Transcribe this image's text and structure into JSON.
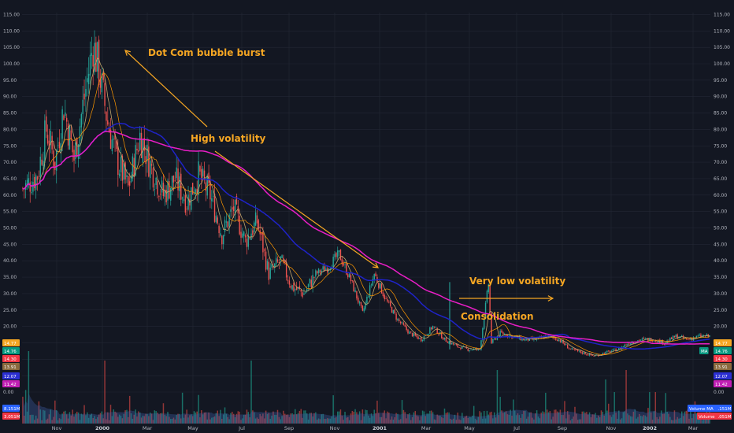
{
  "chart_data": {
    "type": "candlestick",
    "y_ticks": [
      "0.00",
      "5.00",
      "10.00",
      "15.00",
      "20.00",
      "25.00",
      "30.00",
      "35.00",
      "40.00",
      "45.00",
      "50.00",
      "55.00",
      "60.00",
      "65.00",
      "70.00",
      "75.00",
      "80.00",
      "85.00",
      "90.00",
      "95.00",
      "100.00",
      "105.00",
      "110.00",
      "115.00"
    ],
    "x_ticks": [
      {
        "label": "Nov",
        "major": false
      },
      {
        "label": "2000",
        "major": true
      },
      {
        "label": "Mar",
        "major": false
      },
      {
        "label": "May",
        "major": false
      },
      {
        "label": "Jul",
        "major": false
      },
      {
        "label": "Sep",
        "major": false
      },
      {
        "label": "Nov",
        "major": false
      },
      {
        "label": "2001",
        "major": true
      },
      {
        "label": "Mar",
        "major": false
      },
      {
        "label": "May",
        "major": false
      },
      {
        "label": "Jul",
        "major": false
      },
      {
        "label": "Sep",
        "major": false
      },
      {
        "label": "Nov",
        "major": false
      },
      {
        "label": "2002",
        "major": true
      },
      {
        "label": "Mar",
        "major": false
      }
    ],
    "ylim": [
      0,
      115
    ],
    "price_anchors": [
      [
        0,
        62
      ],
      [
        10,
        66
      ],
      [
        16,
        80
      ],
      [
        22,
        70
      ],
      [
        28,
        87
      ],
      [
        35,
        71
      ],
      [
        44,
        95
      ],
      [
        48,
        106
      ],
      [
        52,
        98
      ],
      [
        58,
        82
      ],
      [
        64,
        71
      ],
      [
        72,
        62
      ],
      [
        80,
        78
      ],
      [
        88,
        68
      ],
      [
        96,
        60
      ],
      [
        104,
        65
      ],
      [
        112,
        58
      ],
      [
        120,
        66
      ],
      [
        128,
        60
      ],
      [
        136,
        48
      ],
      [
        144,
        56
      ],
      [
        152,
        46
      ],
      [
        160,
        52
      ],
      [
        168,
        36
      ],
      [
        176,
        40
      ],
      [
        184,
        32
      ],
      [
        192,
        30
      ],
      [
        200,
        36
      ],
      [
        208,
        38
      ],
      [
        216,
        42
      ],
      [
        224,
        34
      ],
      [
        232,
        24
      ],
      [
        240,
        36
      ],
      [
        248,
        28
      ],
      [
        256,
        22
      ],
      [
        264,
        18
      ],
      [
        272,
        16
      ],
      [
        280,
        20
      ],
      [
        288,
        16
      ],
      [
        296,
        14
      ],
      [
        304,
        13
      ],
      [
        312,
        13
      ],
      [
        318,
        33
      ],
      [
        320,
        15
      ],
      [
        326,
        18
      ],
      [
        334,
        17
      ],
      [
        342,
        16
      ],
      [
        350,
        16
      ],
      [
        358,
        17
      ],
      [
        366,
        16
      ],
      [
        374,
        13
      ],
      [
        382,
        12
      ],
      [
        390,
        11
      ],
      [
        398,
        12
      ],
      [
        406,
        13
      ],
      [
        414,
        15
      ],
      [
        422,
        16
      ],
      [
        430,
        16
      ],
      [
        438,
        15
      ],
      [
        446,
        17
      ],
      [
        454,
        16
      ],
      [
        462,
        17
      ],
      [
        468,
        17
      ]
    ],
    "volume_spikes": [
      [
        4,
        23
      ],
      [
        56,
        20
      ],
      [
        156,
        20
      ],
      [
        324,
        17
      ],
      [
        398,
        14
      ],
      [
        404,
        10
      ],
      [
        428,
        10
      ],
      [
        432,
        10
      ],
      [
        412,
        17
      ]
    ],
    "series": [
      {
        "name": "MA",
        "color": "#e91ec6"
      },
      {
        "name": "",
        "color": "#1f23c8"
      },
      {
        "name": "",
        "color": "#ff9800"
      },
      {
        "name": "",
        "color": "#c1a46a"
      },
      {
        "name": "Volume MA",
        "color": "#3f5fa8"
      }
    ],
    "price_badges": [
      {
        "text": "14.77",
        "color": "#f5a623"
      },
      {
        "text": "14.76",
        "color": "#089981"
      },
      {
        "text": "14.30",
        "color": "#f23645"
      },
      {
        "text": "13.91",
        "color": "#8a6a3e"
      },
      {
        "text": "12.07",
        "color": "#2b2fd3"
      },
      {
        "text": "11.42",
        "color": "#c11fb5"
      },
      {
        "text": "8.151M",
        "color": "#2962ff"
      },
      {
        "text": "3.051M",
        "color": "#f23645"
      }
    ],
    "right_labels": [
      {
        "text": "MA",
        "color": "#089981"
      },
      {
        "text": "Volume MA",
        "color": "#2962ff"
      },
      {
        "text": "Volume",
        "color": "#f23645"
      }
    ],
    "annotations": [
      {
        "id": "dotcom",
        "text": "Dot Com bubble burst"
      },
      {
        "id": "highvol",
        "text": "High volatility"
      },
      {
        "id": "lowvol",
        "text": "Very low volatility"
      },
      {
        "id": "consol",
        "text": "Consolidation"
      }
    ],
    "colors": {
      "background": "#131722",
      "grid": "#232734",
      "up": "#26a69a",
      "down": "#ef5350",
      "annotation": "#f5a623"
    }
  }
}
